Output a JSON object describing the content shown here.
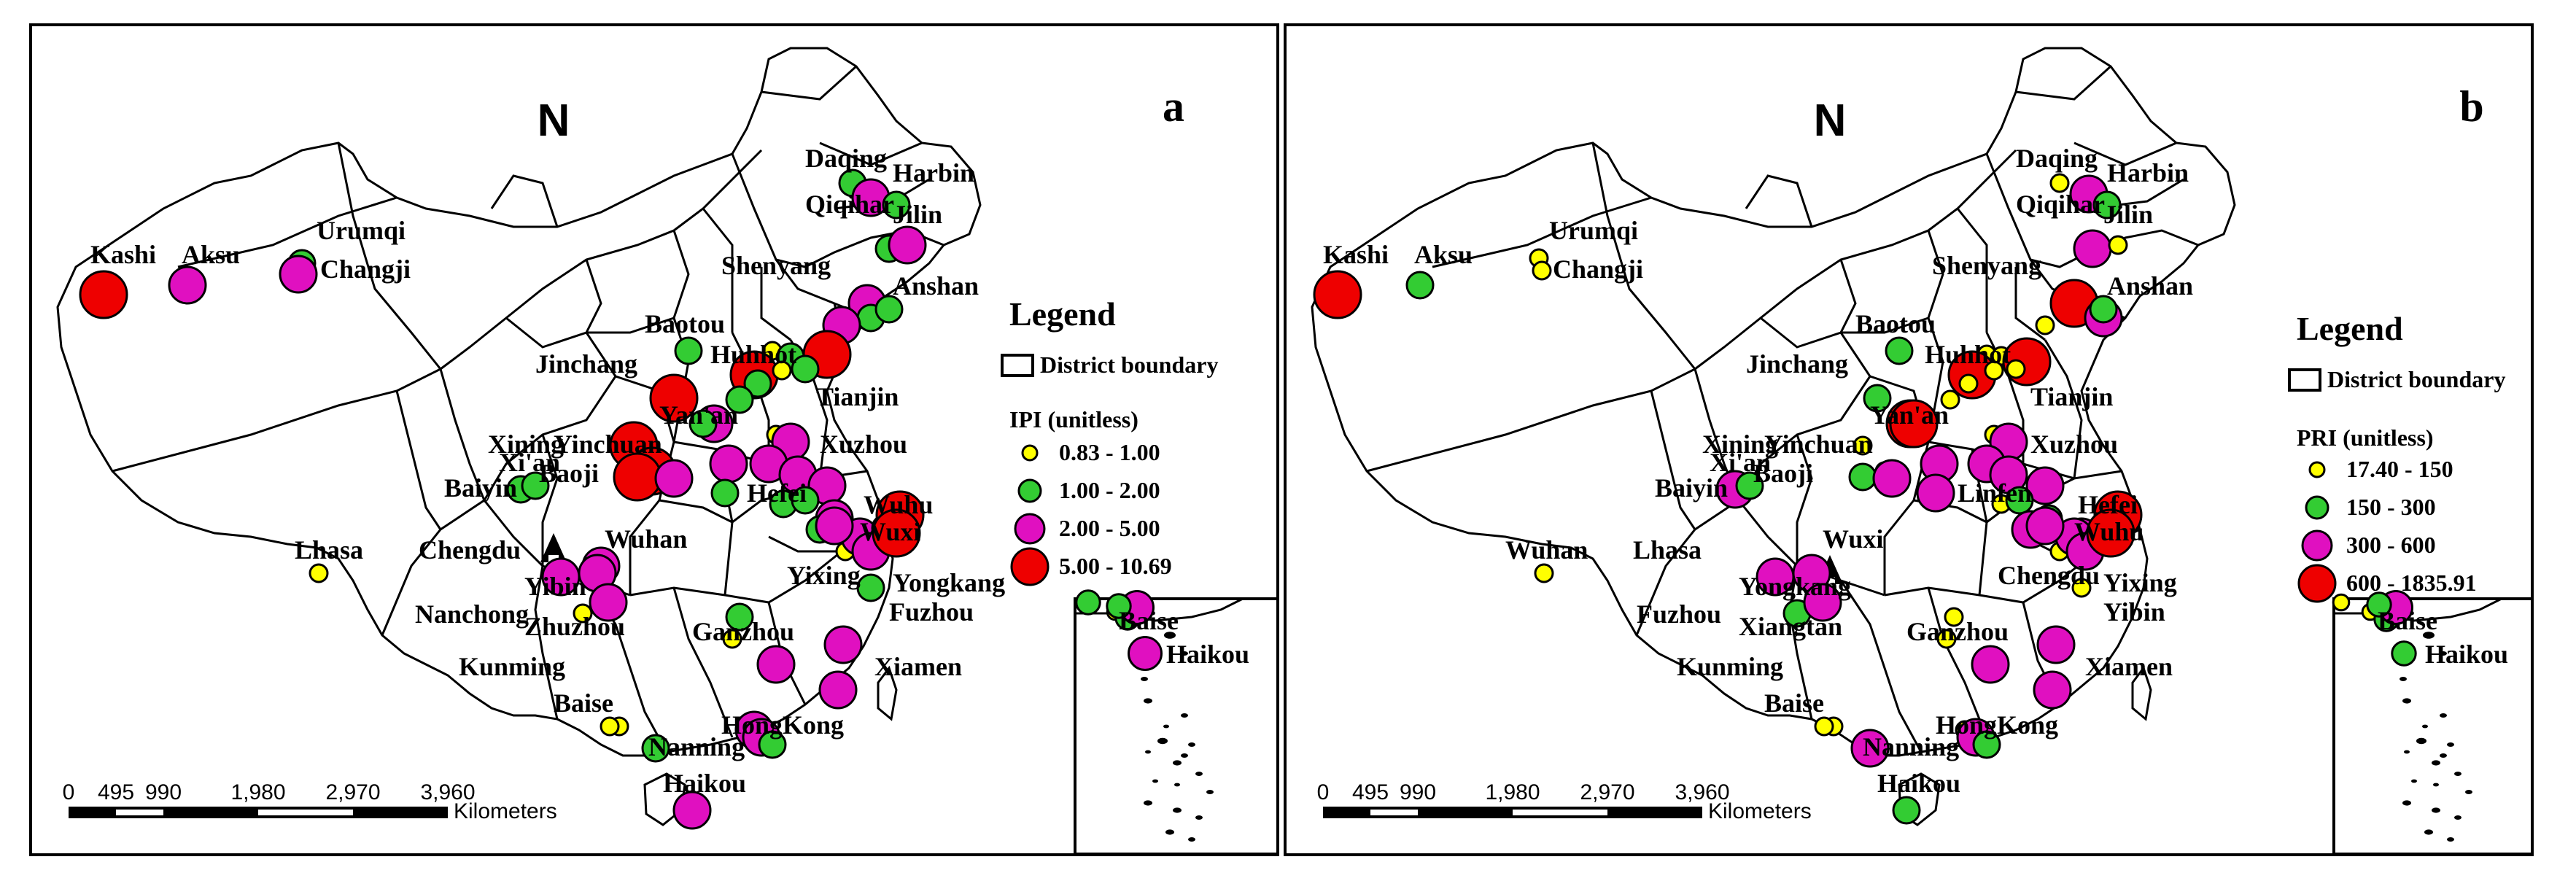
{
  "panels": [
    {
      "id": "a",
      "letter": "a",
      "north": "N",
      "legend_title": "Legend",
      "boundary_label": "District boundary",
      "index_label": "IPI (unitless)",
      "classes": [
        {
          "label": "0.83 - 1.00",
          "color": "#ffff00",
          "size": 1
        },
        {
          "label": "1.00 - 2.00",
          "color": "#33cc33",
          "size": 2
        },
        {
          "label": "2.00 - 5.00",
          "color": "#e010c0",
          "size": 3
        },
        {
          "label": "5.00 - 10.69",
          "color": "#ee0000",
          "size": 4
        }
      ],
      "labels": [
        "Daqing",
        "Harbin",
        "Qiqihar",
        "Jilin",
        "Urumqi",
        "Changji",
        "Kashi",
        "Aksu",
        "Shenyang",
        "Anshan",
        "Baotou",
        "Huhhot",
        "Jinchang",
        "Tianjin",
        "Yinchuan",
        "Yan'an",
        "Xuzhou",
        "Xining",
        "Xi'an",
        "Baoji",
        "Baiyin",
        "Hefei",
        "Wuhu",
        "Wuxi",
        "Wuhan",
        "Lhasa",
        "Chengdu",
        "Yixing",
        "Yongkang",
        "Yibin",
        "Fuzhou",
        "Nanchong",
        "Zhuzhou",
        "Ganzhou",
        "Kunming",
        "Xiamen",
        "Baise",
        "HongKong",
        "Nanning",
        "Haikou",
        "Haikou"
      ],
      "points": [
        {
          "c": 2
        },
        {
          "c": 3
        },
        {
          "c": 2
        },
        {
          "c": 2
        },
        {
          "c": 3
        },
        {
          "c": 2
        },
        {
          "c": 3
        },
        {
          "c": 4
        },
        {
          "c": 3
        },
        {
          "c": 3
        },
        {
          "c": 2
        },
        {
          "c": 3
        },
        {
          "c": 2
        },
        {
          "c": 2
        },
        {
          "c": 1
        },
        {
          "c": 2
        },
        {
          "c": 4
        },
        {
          "c": 4
        },
        {
          "c": 2
        },
        {
          "c": 1
        },
        {
          "c": 2
        },
        {
          "c": 2
        },
        {
          "c": 3
        },
        {
          "c": 4
        },
        {
          "c": 2
        },
        {
          "c": 4
        },
        {
          "c": 4
        },
        {
          "c": 4
        },
        {
          "c": 3
        },
        {
          "c": 3
        },
        {
          "c": 2
        },
        {
          "c": 1
        },
        {
          "c": 3
        },
        {
          "c": 3
        },
        {
          "c": 3
        },
        {
          "c": 3
        },
        {
          "c": 2
        },
        {
          "c": 2
        },
        {
          "c": 3
        },
        {
          "c": 2
        },
        {
          "c": 2
        },
        {
          "c": 1
        },
        {
          "c": 3
        },
        {
          "c": 3
        },
        {
          "c": 3
        },
        {
          "c": 3
        },
        {
          "c": 2
        },
        {
          "c": 2
        },
        {
          "c": 4
        },
        {
          "c": 4
        },
        {
          "c": 2
        },
        {
          "c": 2
        },
        {
          "c": 3
        },
        {
          "c": 3
        },
        {
          "c": 2
        },
        {
          "c": 1
        },
        {
          "c": 3
        },
        {
          "c": 1
        },
        {
          "c": 3
        },
        {
          "c": 2
        },
        {
          "c": 1
        },
        {
          "c": 3
        },
        {
          "c": 3
        },
        {
          "c": 3
        },
        {
          "c": 3
        },
        {
          "c": 1
        },
        {
          "c": 2
        },
        {
          "c": 3
        },
        {
          "c": 1
        },
        {
          "c": 2
        },
        {
          "c": 3
        }
      ],
      "inset_label": "Baise",
      "inset_label2": "Haikou"
    },
    {
      "id": "b",
      "letter": "b",
      "north": "N",
      "legend_title": "Legend",
      "boundary_label": "District boundary",
      "index_label": "PRI (unitless)",
      "classes": [
        {
          "label": "17.40 - 150",
          "color": "#ffff00",
          "size": 1
        },
        {
          "label": "150 - 300",
          "color": "#33cc33",
          "size": 2
        },
        {
          "label": "300 - 600",
          "color": "#e010c0",
          "size": 3
        },
        {
          "label": "600 - 1835.91",
          "color": "#ee0000",
          "size": 4
        }
      ],
      "labels": [
        "Daqing",
        "Harbin",
        "Qiqihar",
        "Jilin",
        "Urumqi",
        "Changji",
        "Kashi",
        "Aksu",
        "Shenyang",
        "Anshan",
        "Baotou",
        "Huhhot",
        "Jinchang",
        "Tianjin",
        "Yinchuan",
        "Yan'an",
        "Xuzhou",
        "Xining",
        "Xi'an",
        "Baoji",
        "Baiyin",
        "Linfen",
        "Hefei",
        "Wuhu",
        "Wuxi",
        "Wuhan",
        "Lhasa",
        "Chengdu",
        "Yixing",
        "Yongkang",
        "Yibin",
        "Fuzhou",
        "Xiangtan",
        "Ganzhou",
        "Kunming",
        "Xiamen",
        "Baise",
        "HongKong",
        "Nanning",
        "Haikou",
        "Haikou"
      ],
      "points": [
        {
          "c": 1
        },
        {
          "c": 3
        },
        {
          "c": 2
        },
        {
          "c": 3
        },
        {
          "c": 1
        },
        {
          "c": 1
        },
        {
          "c": 1
        },
        {
          "c": 4
        },
        {
          "c": 2
        },
        {
          "c": 4
        },
        {
          "c": 3
        },
        {
          "c": 1
        },
        {
          "c": 2
        },
        {
          "c": 2
        },
        {
          "c": 1
        },
        {
          "c": 1
        },
        {
          "c": 4
        },
        {
          "c": 4
        },
        {
          "c": 1
        },
        {
          "c": 1
        },
        {
          "c": 1
        },
        {
          "c": 1
        },
        {
          "c": 4
        },
        {
          "c": 2
        },
        {
          "c": 4
        },
        {
          "c": 1
        },
        {
          "c": 1
        },
        {
          "c": 2
        },
        {
          "c": 3
        },
        {
          "c": 3
        },
        {
          "c": 3
        },
        {
          "c": 1
        },
        {
          "c": 3
        },
        {
          "c": 3
        },
        {
          "c": 3
        },
        {
          "c": 3
        },
        {
          "c": 1
        },
        {
          "c": 2
        },
        {
          "c": 2
        },
        {
          "c": 3
        },
        {
          "c": 3
        },
        {
          "c": 1
        },
        {
          "c": 3
        },
        {
          "c": 3
        },
        {
          "c": 3
        },
        {
          "c": 2
        },
        {
          "c": 1
        },
        {
          "c": 2
        },
        {
          "c": 4
        },
        {
          "c": 4
        },
        {
          "c": 3
        },
        {
          "c": 2
        },
        {
          "c": 3
        },
        {
          "c": 1
        },
        {
          "c": 1
        },
        {
          "c": 1
        },
        {
          "c": 3
        },
        {
          "c": 2
        },
        {
          "c": 3
        },
        {
          "c": 1
        },
        {
          "c": 1
        },
        {
          "c": 3
        },
        {
          "c": 3
        },
        {
          "c": 3
        },
        {
          "c": 1
        },
        {
          "c": 1
        },
        {
          "c": 3
        },
        {
          "c": 3
        },
        {
          "c": 1
        },
        {
          "c": 2
        },
        {
          "c": 2
        }
      ],
      "inset_label": "Baise",
      "inset_label2": "Haikou"
    }
  ],
  "scale_bar": {
    "ticks": [
      "0",
      "495",
      "990",
      "1,980",
      "2,970",
      "3,960"
    ],
    "unit": "Kilometers"
  }
}
